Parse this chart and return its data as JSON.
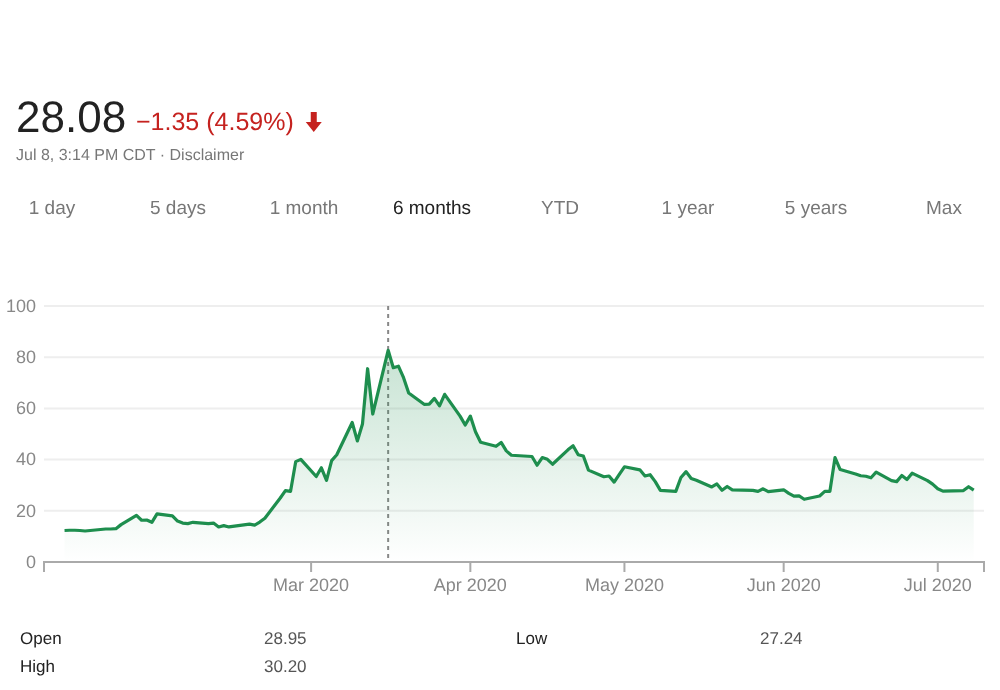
{
  "chart_data": {
    "type": "area",
    "color": "#1e8e4e",
    "x": [
      "2020-01-13",
      "2020-01-14",
      "2020-01-15",
      "2020-01-16",
      "2020-01-17",
      "2020-01-21",
      "2020-01-22",
      "2020-01-23",
      "2020-01-24",
      "2020-01-27",
      "2020-01-28",
      "2020-01-29",
      "2020-01-30",
      "2020-01-31",
      "2020-02-03",
      "2020-02-04",
      "2020-02-05",
      "2020-02-06",
      "2020-02-07",
      "2020-02-10",
      "2020-02-11",
      "2020-02-12",
      "2020-02-13",
      "2020-02-14",
      "2020-02-18",
      "2020-02-19",
      "2020-02-20",
      "2020-02-21",
      "2020-02-24",
      "2020-02-25",
      "2020-02-26",
      "2020-02-27",
      "2020-02-28",
      "2020-03-02",
      "2020-03-03",
      "2020-03-04",
      "2020-03-05",
      "2020-03-06",
      "2020-03-09",
      "2020-03-10",
      "2020-03-11",
      "2020-03-12",
      "2020-03-13",
      "2020-03-16",
      "2020-03-17",
      "2020-03-18",
      "2020-03-19",
      "2020-03-20",
      "2020-03-23",
      "2020-03-24",
      "2020-03-25",
      "2020-03-26",
      "2020-03-27",
      "2020-03-30",
      "2020-03-31",
      "2020-04-01",
      "2020-04-02",
      "2020-04-03",
      "2020-04-06",
      "2020-04-07",
      "2020-04-08",
      "2020-04-09",
      "2020-04-13",
      "2020-04-14",
      "2020-04-15",
      "2020-04-16",
      "2020-04-17",
      "2020-04-20",
      "2020-04-21",
      "2020-04-22",
      "2020-04-23",
      "2020-04-24",
      "2020-04-27",
      "2020-04-28",
      "2020-04-29",
      "2020-04-30",
      "2020-05-01",
      "2020-05-04",
      "2020-05-05",
      "2020-05-06",
      "2020-05-07",
      "2020-05-08",
      "2020-05-11",
      "2020-05-12",
      "2020-05-13",
      "2020-05-14",
      "2020-05-15",
      "2020-05-18",
      "2020-05-19",
      "2020-05-20",
      "2020-05-21",
      "2020-05-22",
      "2020-05-26",
      "2020-05-27",
      "2020-05-28",
      "2020-05-29",
      "2020-06-01",
      "2020-06-02",
      "2020-06-03",
      "2020-06-04",
      "2020-06-05",
      "2020-06-08",
      "2020-06-09",
      "2020-06-10",
      "2020-06-11",
      "2020-06-12",
      "2020-06-15",
      "2020-06-16",
      "2020-06-17",
      "2020-06-18",
      "2020-06-19",
      "2020-06-22",
      "2020-06-23",
      "2020-06-24",
      "2020-06-25",
      "2020-06-26",
      "2020-06-29",
      "2020-06-30",
      "2020-07-01",
      "2020-07-02",
      "2020-07-06",
      "2020-07-07",
      "2020-07-08"
    ],
    "values": [
      12.3,
      12.4,
      12.4,
      12.3,
      12.1,
      12.9,
      12.9,
      13,
      14.6,
      18.2,
      16.3,
      16.4,
      15.5,
      18.8,
      18,
      16,
      15.2,
      15,
      15.5,
      15,
      15.2,
      13.7,
      14.2,
      13.7,
      14.8,
      14.4,
      15.6,
      17.1,
      25,
      27.9,
      27.6,
      39.2,
      40.1,
      33.4,
      36.8,
      31.9,
      39.6,
      41.9,
      54.5,
      47.3,
      53.9,
      75.5,
      57.8,
      82.7,
      75.9,
      76.5,
      72,
      66,
      61.6,
      61.7,
      63.9,
      61,
      65.5,
      57,
      53.5,
      57,
      50.9,
      46.8,
      45.2,
      46.7,
      43.4,
      41.7,
      41.2,
      37.8,
      40.8,
      40.1,
      38.2,
      43.8,
      45.4,
      41.9,
      41.4,
      35.9,
      33.3,
      33.6,
      31.2,
      34.2,
      37.2,
      36,
      33.6,
      34.1,
      31.4,
      28,
      27.6,
      33,
      35.3,
      32.6,
      31.9,
      29.3,
      30.5,
      28,
      29.5,
      28.2,
      28,
      27.6,
      28.6,
      27.5,
      28.2,
      26.8,
      25.7,
      25.8,
      24.5,
      25.8,
      27.6,
      27.6,
      40.8,
      36.1,
      34.4,
      33.7,
      33.5,
      32.9,
      35.1,
      31.8,
      31.4,
      33.8,
      32.2,
      34.7,
      31.8,
      30.4,
      28.6,
      27.7,
      27.9,
      29.4,
      28.08
    ],
    "xlim": [
      "2020-01-09",
      "2020-07-10"
    ],
    "xticks": [
      {
        "value": "2020-03-01",
        "label": "Mar 2020"
      },
      {
        "value": "2020-04-01",
        "label": "Apr 2020"
      },
      {
        "value": "2020-05-01",
        "label": "May 2020"
      },
      {
        "value": "2020-06-01",
        "label": "Jun 2020"
      },
      {
        "value": "2020-07-01",
        "label": "Jul 2020"
      }
    ],
    "ylim": [
      0,
      100
    ],
    "yticks": [
      0,
      20,
      40,
      60,
      80,
      100
    ],
    "grid": "y",
    "ref_lines": [
      {
        "axis": "x",
        "value": "2020-03-16",
        "color": "#888888",
        "line_style": "dotted"
      }
    ],
    "annotations": [
      "28.08",
      "−1.35 (4.59%)",
      "Jul 8, 3:14 PM CDT · Disclaimer",
      "1 day",
      "5 days",
      "1 month",
      "6 months",
      "YTD",
      "1 year",
      "5 years",
      "Max",
      "Open",
      "28.95",
      "High",
      "30.20",
      "Low",
      "27.24"
    ]
  }
}
